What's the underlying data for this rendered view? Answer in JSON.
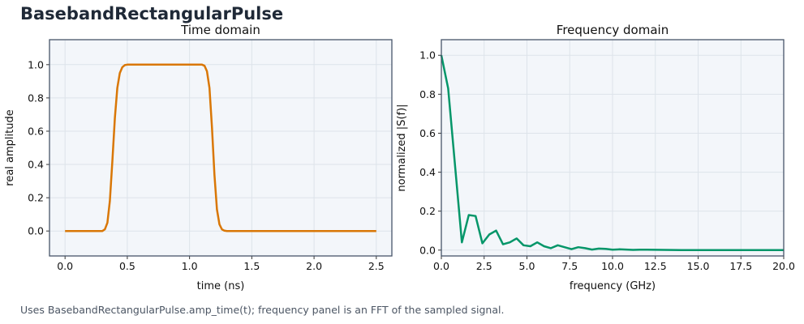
{
  "title": "BasebandRectangularPulse",
  "caption": "Uses BasebandRectangularPulse.amp_time(t); frequency panel is an FFT of the sampled signal.",
  "colors": {
    "time_line": "#d97706",
    "freq_line": "#059669",
    "plot_bg": "#f3f6fa",
    "axes": "#475569"
  },
  "chart_data": [
    {
      "type": "line",
      "title": "Time domain",
      "xlabel": "time (ns)",
      "ylabel": "real amplitude",
      "xlim": [
        -0.125,
        2.625
      ],
      "ylim": [
        -0.15,
        1.15
      ],
      "xticks": [
        0.0,
        0.5,
        1.0,
        1.5,
        2.0,
        2.5
      ],
      "xtick_labels": [
        "0.0",
        "0.5",
        "1.0",
        "1.5",
        "2.0",
        "2.5"
      ],
      "yticks": [
        0.0,
        0.2,
        0.4,
        0.6,
        0.8,
        1.0
      ],
      "ytick_labels": [
        "0.0",
        "0.2",
        "0.4",
        "0.6",
        "0.8",
        "1.0"
      ],
      "grid": true,
      "series": [
        {
          "x": [
            0.0,
            0.3,
            0.32,
            0.34,
            0.36,
            0.38,
            0.4,
            0.42,
            0.44,
            0.46,
            0.48,
            0.5,
            1.1,
            1.12,
            1.14,
            1.16,
            1.18,
            1.2,
            1.22,
            1.24,
            1.26,
            1.28,
            1.3,
            2.5
          ],
          "y": [
            0.0,
            0.0,
            0.01,
            0.05,
            0.18,
            0.42,
            0.68,
            0.86,
            0.95,
            0.985,
            0.997,
            1.0,
            1.0,
            0.993,
            0.96,
            0.86,
            0.62,
            0.34,
            0.13,
            0.04,
            0.01,
            0.002,
            0.0,
            0.0
          ]
        }
      ]
    },
    {
      "type": "line",
      "title": "Frequency domain",
      "xlabel": "frequency (GHz)",
      "ylabel": "normalized |S(f)|",
      "xlim": [
        0,
        20
      ],
      "ylim": [
        -0.03,
        1.08
      ],
      "xticks": [
        0.0,
        2.5,
        5.0,
        7.5,
        10.0,
        12.5,
        15.0,
        17.5,
        20.0
      ],
      "xtick_labels": [
        "0.0",
        "2.5",
        "5.0",
        "7.5",
        "10.0",
        "12.5",
        "15.0",
        "17.5",
        "20.0"
      ],
      "yticks": [
        0.0,
        0.2,
        0.4,
        0.6,
        0.8,
        1.0
      ],
      "ytick_labels": [
        "0.0",
        "0.2",
        "0.4",
        "0.6",
        "0.8",
        "1.0"
      ],
      "grid": true,
      "series": [
        {
          "x": [
            0.0,
            0.4,
            1.2,
            1.6,
            2.0,
            2.4,
            2.8,
            3.2,
            3.6,
            4.0,
            4.4,
            4.8,
            5.2,
            5.6,
            6.0,
            6.4,
            6.8,
            7.2,
            7.6,
            8.0,
            8.4,
            8.8,
            9.2,
            9.6,
            10.0,
            10.4,
            10.8,
            11.2,
            11.6,
            12.0,
            13.0,
            14.0,
            20.0
          ],
          "y": [
            1.0,
            0.83,
            0.04,
            0.18,
            0.175,
            0.035,
            0.08,
            0.1,
            0.03,
            0.04,
            0.06,
            0.025,
            0.02,
            0.04,
            0.02,
            0.01,
            0.025,
            0.015,
            0.005,
            0.015,
            0.01,
            0.003,
            0.008,
            0.006,
            0.002,
            0.004,
            0.003,
            0.001,
            0.002,
            0.002,
            0.001,
            0.0,
            0.0
          ]
        }
      ]
    }
  ]
}
